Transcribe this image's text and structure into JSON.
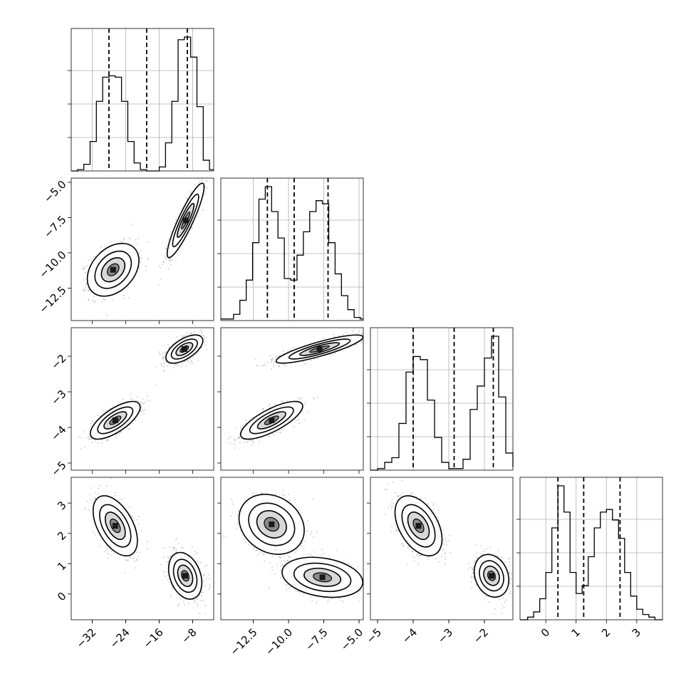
{
  "chart_data": {
    "type": "corner",
    "description_free": true,
    "axis_ranges": [
      [
        -37,
        -3
      ],
      [
        -14.8,
        -4.7
      ],
      [
        -5.2,
        -1.2
      ],
      [
        -0.85,
        3.85
      ]
    ],
    "x_ticks": [
      {
        "values": [
          -32,
          -24,
          -16,
          -8
        ],
        "labels": [
          "−32",
          "−24",
          "−16",
          "−8"
        ]
      },
      {
        "values": [
          -12.5,
          -10.0,
          -7.5,
          -5.0
        ],
        "labels": [
          "−12.5",
          "−10.0",
          "−7.5",
          "−5.0"
        ]
      },
      {
        "values": [
          -5,
          -4,
          -3,
          -2
        ],
        "labels": [
          "−5",
          "−4",
          "−3",
          "−2"
        ]
      },
      {
        "values": [
          0,
          1,
          2,
          3
        ],
        "labels": [
          "0",
          "1",
          "2",
          "3"
        ]
      }
    ],
    "y_ticks": [
      null,
      {
        "values": [
          -5.0,
          -7.5,
          -10.0,
          -12.5
        ],
        "labels": [
          "−5.0",
          "−7.5",
          "−10.0",
          "−12.5"
        ]
      },
      {
        "values": [
          -2,
          -3,
          -4,
          -5
        ],
        "labels": [
          "−2",
          "−3",
          "−4",
          "−5"
        ]
      },
      {
        "values": [
          3,
          2,
          1,
          0
        ],
        "labels": [
          "3",
          "2",
          "1",
          "0"
        ]
      }
    ],
    "quantiles": [
      [
        -28.0,
        -19.0,
        -9.3
      ],
      [
        -11.5,
        -9.6,
        -7.2
      ],
      [
        -4.0,
        -2.85,
        -1.75
      ],
      [
        0.4,
        1.25,
        2.45
      ]
    ],
    "histograms": [
      {
        "edges": [
          -37,
          -35.5,
          -34,
          -32.5,
          -31,
          -29.5,
          -28,
          -26.5,
          -25,
          -23.5,
          -22,
          -20.5,
          -19,
          -17.5,
          -16,
          -14.5,
          -13,
          -11.5,
          -10,
          -8.5,
          -7,
          -5.5,
          -4,
          -3
        ],
        "counts": [
          0,
          1,
          5,
          22,
          52,
          70,
          71,
          70,
          52,
          22,
          6,
          1,
          0,
          0,
          3,
          21,
          52,
          98,
          100,
          85,
          48,
          8,
          1
        ]
      },
      {
        "edges": [
          -14.8,
          -14.35,
          -13.9,
          -13.45,
          -13.0,
          -12.55,
          -12.1,
          -11.65,
          -11.2,
          -10.75,
          -10.3,
          -9.85,
          -9.4,
          -8.95,
          -8.5,
          -8.05,
          -7.6,
          -7.15,
          -6.7,
          -6.25,
          -5.8,
          -5.35,
          -4.9,
          -4.7
        ],
        "counts": [
          1,
          1,
          4,
          13,
          26,
          50,
          78,
          86,
          70,
          53,
          27,
          26,
          42,
          57,
          70,
          77,
          75,
          50,
          30,
          16,
          7,
          2,
          1
        ]
      },
      {
        "edges": [
          -5.2,
          -5.0,
          -4.8,
          -4.6,
          -4.4,
          -4.2,
          -4.0,
          -3.8,
          -3.6,
          -3.4,
          -3.2,
          -3.0,
          -2.8,
          -2.6,
          -2.4,
          -2.2,
          -2.0,
          -1.8,
          -1.6,
          -1.4,
          -1.2
        ],
        "counts": [
          0,
          1,
          5,
          8,
          30,
          63,
          73,
          71,
          45,
          21,
          5,
          1,
          1,
          7,
          39,
          54,
          72,
          86,
          47,
          11,
          2
        ]
      },
      {
        "edges": [
          -0.85,
          -0.6,
          -0.4,
          -0.2,
          0.0,
          0.2,
          0.4,
          0.6,
          0.8,
          1.0,
          1.2,
          1.4,
          1.6,
          1.8,
          2.0,
          2.2,
          2.4,
          2.6,
          2.8,
          3.0,
          3.2,
          3.4,
          3.6,
          3.85
        ],
        "counts": [
          0,
          1,
          3,
          8,
          18,
          35,
          51,
          41,
          18,
          10,
          13,
          24,
          35,
          41,
          42,
          38,
          31,
          18,
          9,
          4,
          2,
          1,
          0
        ]
      }
    ],
    "blobs": {
      "1-0": [
        {
          "cx": -27.0,
          "cy": -11.2,
          "sx": 2.8,
          "sy": 0.85,
          "rho": 0.35
        },
        {
          "cx": -9.7,
          "cy": -7.7,
          "sx": 2.0,
          "sy": 1.2,
          "rho": 0.9
        }
      ],
      "2-0": [
        {
          "cx": -26.5,
          "cy": -3.8,
          "sx": 2.7,
          "sy": 0.24,
          "rho": 0.7
        },
        {
          "cx": -10.0,
          "cy": -1.8,
          "sx": 2.0,
          "sy": 0.18,
          "rho": 0.6
        }
      ],
      "2-1": [
        {
          "cx": -11.2,
          "cy": -3.8,
          "sx": 1.0,
          "sy": 0.24,
          "rho": 0.75
        },
        {
          "cx": -7.8,
          "cy": -1.8,
          "sx": 1.4,
          "sy": 0.18,
          "rho": 0.85
        }
      ],
      "3-0": [
        {
          "cx": -26.5,
          "cy": 2.25,
          "sx": 2.4,
          "sy": 0.45,
          "rho": -0.5
        },
        {
          "cx": -9.8,
          "cy": 0.6,
          "sx": 1.8,
          "sy": 0.35,
          "rho": -0.3
        }
      ],
      "3-1": [
        {
          "cx": -11.2,
          "cy": 2.3,
          "sx": 1.05,
          "sy": 0.45,
          "rho": -0.2
        },
        {
          "cx": -7.6,
          "cy": 0.55,
          "sx": 1.3,
          "sy": 0.3,
          "rho": -0.25
        }
      ],
      "3-2": [
        {
          "cx": -3.85,
          "cy": 2.25,
          "sx": 0.3,
          "sy": 0.45,
          "rho": -0.45
        },
        {
          "cx": -1.8,
          "cy": 0.6,
          "sx": 0.22,
          "sy": 0.32,
          "rho": -0.2
        }
      ]
    }
  }
}
